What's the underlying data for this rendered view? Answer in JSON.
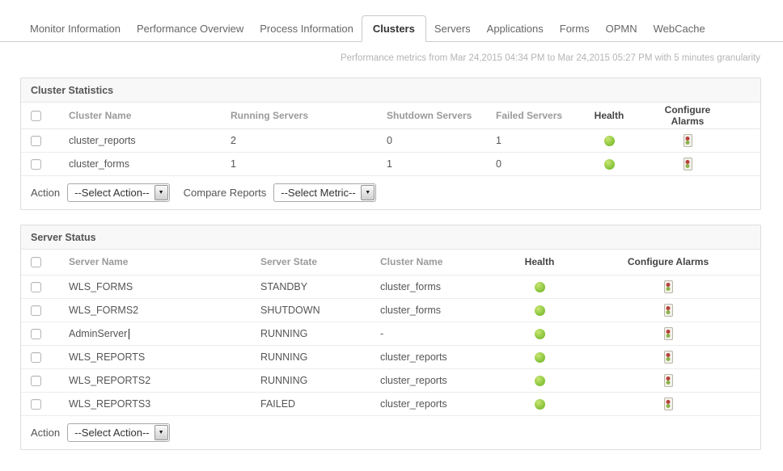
{
  "tabs": [
    {
      "label": "Monitor Information",
      "active": false
    },
    {
      "label": "Performance Overview",
      "active": false
    },
    {
      "label": "Process Information",
      "active": false
    },
    {
      "label": "Clusters",
      "active": true
    },
    {
      "label": "Servers",
      "active": false
    },
    {
      "label": "Applications",
      "active": false
    },
    {
      "label": "Forms",
      "active": false
    },
    {
      "label": "OPMN",
      "active": false
    },
    {
      "label": "WebCache",
      "active": false
    }
  ],
  "subtitle": "Performance metrics from Mar 24,2015 04:34 PM to Mar 24,2015 05:27 PM with 5 minutes granularity",
  "cluster_statistics": {
    "title": "Cluster Statistics",
    "columns": [
      "Cluster Name",
      "Running Servers",
      "Shutdown Servers",
      "Failed Servers",
      "Health",
      "Configure Alarms"
    ],
    "rows": [
      {
        "cluster_name": "cluster_reports",
        "running_servers": "2",
        "shutdown_servers": "0",
        "failed_servers": "1",
        "health": "ok"
      },
      {
        "cluster_name": "cluster_forms",
        "running_servers": "1",
        "shutdown_servers": "1",
        "failed_servers": "0",
        "health": "ok"
      }
    ],
    "action_label": "Action",
    "action_select": "--Select Action--",
    "compare_label": "Compare Reports",
    "compare_select": "--Select Metric--"
  },
  "server_status": {
    "title": "Server Status",
    "columns": [
      "Server Name",
      "Server State",
      "Cluster Name",
      "Health",
      "Configure Alarms"
    ],
    "rows": [
      {
        "server_name": "WLS_FORMS",
        "server_state": "STANDBY",
        "cluster_name": "cluster_forms",
        "health": "ok",
        "caret": false
      },
      {
        "server_name": "WLS_FORMS2",
        "server_state": "SHUTDOWN",
        "cluster_name": "cluster_forms",
        "health": "ok",
        "caret": false
      },
      {
        "server_name": "AdminServer",
        "server_state": "RUNNING",
        "cluster_name": "-",
        "health": "ok",
        "caret": true
      },
      {
        "server_name": "WLS_REPORTS",
        "server_state": "RUNNING",
        "cluster_name": "cluster_reports",
        "health": "ok",
        "caret": false
      },
      {
        "server_name": "WLS_REPORTS2",
        "server_state": "RUNNING",
        "cluster_name": "cluster_reports",
        "health": "ok",
        "caret": false
      },
      {
        "server_name": "WLS_REPORTS3",
        "server_state": "FAILED",
        "cluster_name": "cluster_reports",
        "health": "ok",
        "caret": false
      }
    ],
    "action_label": "Action",
    "action_select": "--Select Action--"
  },
  "icons": {
    "dropdown_arrow": "▼",
    "health_ok": "green-dot",
    "configure_alarm": "traffic-light"
  },
  "colors": {
    "health_green": "#8cc63e",
    "alarm_red": "#b5413a",
    "alarm_green": "#8bb24a",
    "tab_active_text": "#333333",
    "header_muted": "#9a9a9a"
  }
}
